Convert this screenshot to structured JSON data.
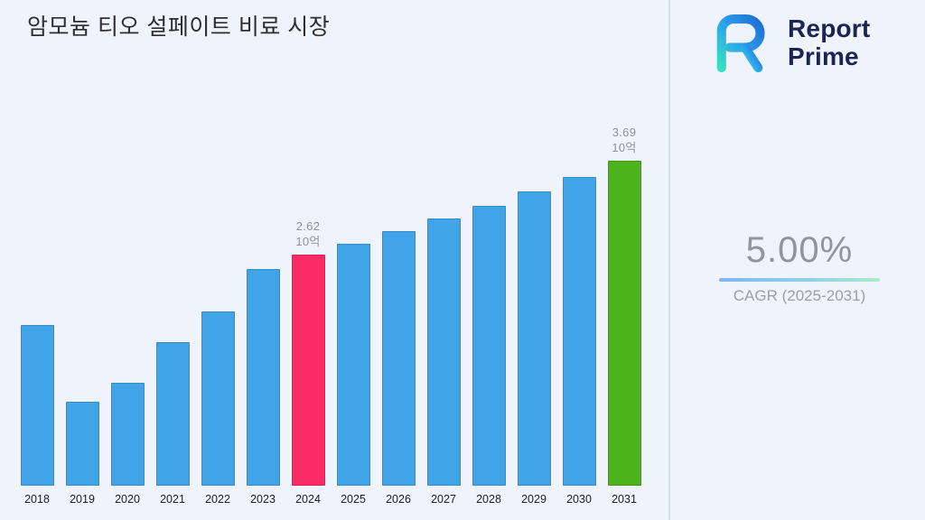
{
  "header": {
    "title": "암모늄 티오 설페이트 비료 시장"
  },
  "brand": {
    "logo_icon": "report-prime-logo",
    "name_line1": "Report",
    "name_line2": "Prime"
  },
  "cagr": {
    "value": "5.00%",
    "label": "CAGR (2025-2031)"
  },
  "chart_data": {
    "type": "bar",
    "title": "암모늄 티오 설페이트 비료 시장",
    "categories": [
      "2018",
      "2019",
      "2020",
      "2021",
      "2022",
      "2023",
      "2024",
      "2025",
      "2026",
      "2027",
      "2028",
      "2029",
      "2030",
      "2031"
    ],
    "values": [
      1.82,
      0.95,
      1.17,
      1.63,
      1.98,
      2.46,
      2.62,
      2.75,
      2.89,
      3.03,
      3.18,
      3.34,
      3.51,
      3.69
    ],
    "unit": "10억",
    "ylim": [
      0,
      3.69
    ],
    "grid": false,
    "legend": false,
    "colors": {
      "default": "#41a3e8",
      "2024": "#fb2b66",
      "2031": "#4cb31d"
    },
    "annotations": [
      {
        "category": "2024",
        "value_label": "2.62",
        "unit_label": "10억"
      },
      {
        "category": "2031",
        "value_label": "3.69",
        "unit_label": "10억"
      }
    ]
  }
}
